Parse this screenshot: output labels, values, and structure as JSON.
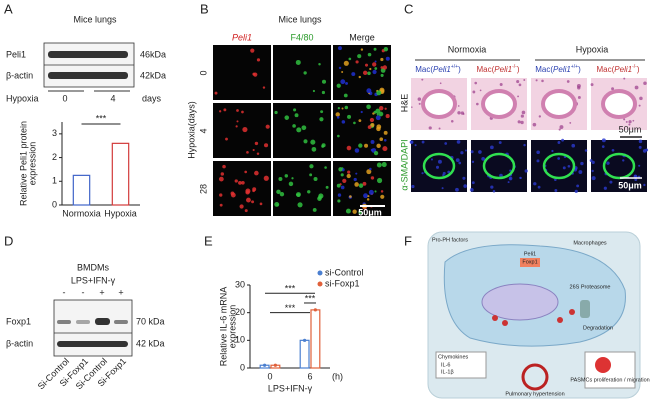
{
  "panels": {
    "A": {
      "label": "A",
      "title": "Mice lungs",
      "blot_rows": [
        "Peli1",
        "β-actin"
      ],
      "blot_sizes": [
        "46kDa",
        "42kDa"
      ],
      "condition": "Hypoxia",
      "condition_levels": [
        "0",
        "4"
      ],
      "condition_unit": "days"
    },
    "B": {
      "label": "B",
      "title": "Mice lungs",
      "columns": [
        "Peli1",
        "F4/80",
        "Merge"
      ],
      "row_axis": "Hypoxia(days)",
      "rows": [
        "0",
        "4",
        "28"
      ],
      "scale_bar": "50μm"
    },
    "C": {
      "label": "C",
      "groups": [
        "Normoxia",
        "Hypoxia"
      ],
      "genotypes": [
        {
          "prefix": "Mac(",
          "gene": "Peli1",
          "allele": "+/+",
          "suffix": ")"
        },
        {
          "prefix": "Mac(",
          "gene": "Peli1",
          "allele": "-/-",
          "suffix": ")"
        },
        {
          "prefix": "Mac(",
          "gene": "Peli1",
          "allele": "+/+",
          "suffix": ")"
        },
        {
          "prefix": "Mac(",
          "gene": "Peli1",
          "allele": "-/-",
          "suffix": ")"
        }
      ],
      "rows": [
        "H&E",
        "α-SMA/DAPI"
      ],
      "scale_bars": [
        "50μm",
        "50μm"
      ]
    },
    "D": {
      "label": "D",
      "title": "BMDMs",
      "treatment": "LPS+IFN-γ",
      "treatment_signs": [
        "-",
        "-",
        "+",
        "+"
      ],
      "blot_rows": [
        "Foxp1",
        "β-actin"
      ],
      "blot_sizes": [
        "70 kDa",
        "42 kDa"
      ],
      "lanes": [
        "Si-Control",
        "Si-Foxp1",
        "Si-Control",
        "Si-Foxp1"
      ]
    },
    "E": {
      "label": "E"
    },
    "F": {
      "label": "F",
      "texts": [
        "Pro-PH factors",
        "Macrophages",
        "Peli1",
        "Foxp1",
        "26S Proteasome",
        "Degradation",
        "Chymokines",
        "IL-6",
        "IL-1β",
        "Pulmonary hypertension",
        "PASMCs proliferation / migration"
      ]
    }
  },
  "chart_data": [
    {
      "type": "bar",
      "ylabel_lines": [
        "Relative Peli1 protein",
        "expression"
      ],
      "categories": [
        "Normoxia",
        "Hypoxia"
      ],
      "values": [
        1.25,
        2.6
      ],
      "colors": [
        "#3f63c8",
        "#d23a3a"
      ],
      "ylim": [
        0,
        3.5
      ],
      "yticks": [
        0,
        1,
        2,
        3
      ],
      "annotations": [
        "***"
      ]
    },
    {
      "type": "bar",
      "ylabel_lines": [
        "Relative IL-6 mRNA",
        "expression"
      ],
      "xlabel": "LPS+IFN-γ",
      "x_unit": "(h)",
      "categories": [
        "0",
        "6"
      ],
      "series": [
        {
          "name": "si-Control",
          "color": "#4a7fd0",
          "values": [
            1,
            10
          ]
        },
        {
          "name": "si-Foxp1",
          "color": "#e0603a",
          "values": [
            1,
            21
          ]
        }
      ],
      "ylim": [
        0,
        30
      ],
      "yticks": [
        0,
        10,
        20,
        30
      ],
      "annotations": [
        "***",
        "***",
        "***"
      ]
    }
  ]
}
